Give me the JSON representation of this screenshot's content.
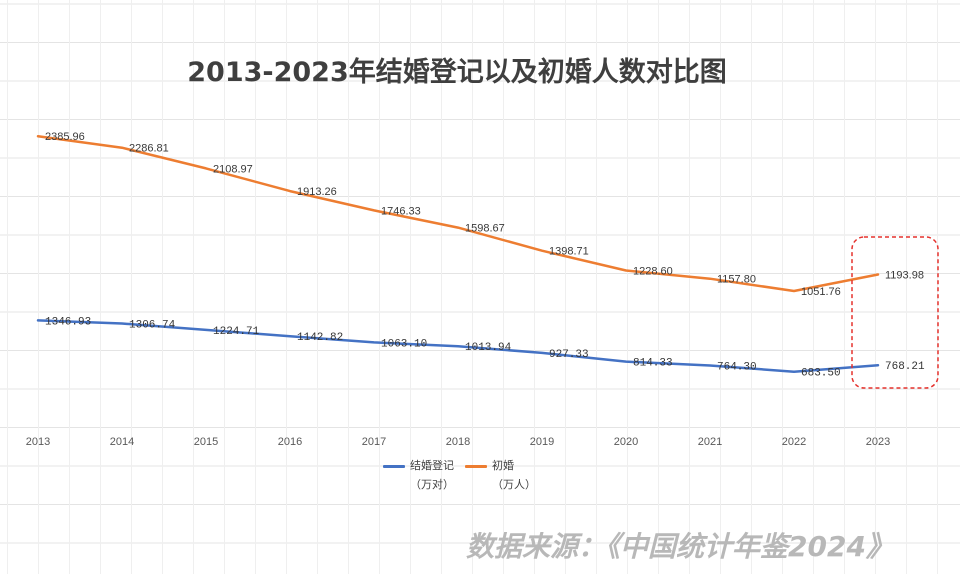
{
  "source": "数据来源：《中国统计年鉴2024》",
  "colors": {
    "highlight_box": "#E5322D"
  },
  "chart_data": {
    "type": "line",
    "title": "2013-2023年结婚登记以及初婚人数对比图",
    "categories": [
      "2013",
      "2014",
      "2015",
      "2016",
      "2017",
      "2018",
      "2019",
      "2020",
      "2021",
      "2022",
      "2023"
    ],
    "series": [
      {
        "name": "结婚登记",
        "unit": "（万对）",
        "color": "#4472C4",
        "axis": "secondary",
        "values": [
          1346.93,
          1306.74,
          1224.71,
          1142.82,
          1063.1,
          1013.94,
          927.33,
          814.33,
          764.3,
          683.5,
          768.21
        ]
      },
      {
        "name": "初婚",
        "unit": "（万人）",
        "color": "#ED7D31",
        "axis": "primary",
        "values": [
          2385.96,
          2286.81,
          2108.97,
          1913.26,
          1746.33,
          1598.67,
          1398.71,
          1228.6,
          1157.8,
          1051.76,
          1193.98
        ]
      }
    ],
    "y_axes": {
      "primary": {
        "range": [
          0,
          2500
        ],
        "visible": false
      },
      "secondary": {
        "range": [
          150,
          3900
        ],
        "visible": false
      }
    },
    "data_labels": "right",
    "legend_position": "bottom",
    "grid": false
  }
}
